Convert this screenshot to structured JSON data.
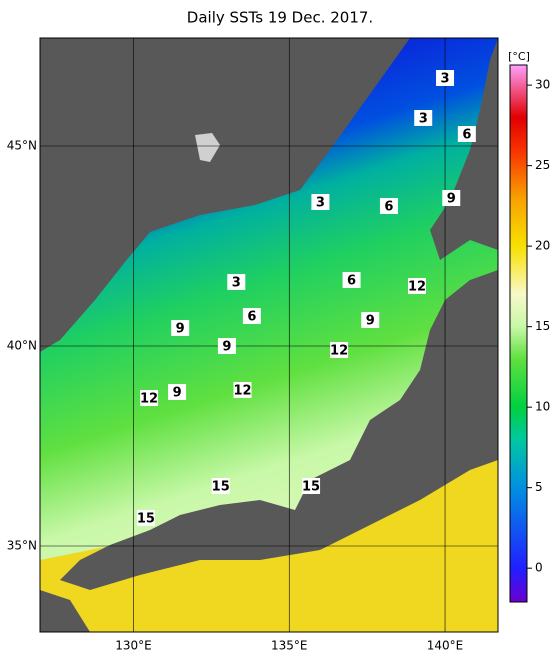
{
  "chart_data": {
    "type": "map",
    "title": "Daily SSTs 19 Dec. 2017.",
    "xlim": [
      127,
      141.7
    ],
    "ylim": [
      32.85,
      47.7
    ],
    "xticks": [
      {
        "value": 130,
        "label": "130°E"
      },
      {
        "value": 135,
        "label": "135°E"
      },
      {
        "value": 140,
        "label": "140°E"
      }
    ],
    "yticks": [
      {
        "value": 35,
        "label": "35°N"
      },
      {
        "value": 40,
        "label": "40°N"
      },
      {
        "value": 45,
        "label": "45°N"
      }
    ],
    "grid": true,
    "colorbar": {
      "label": "[°C]",
      "clim": [
        -2.1,
        31.25
      ],
      "ticks": [
        0,
        5,
        10,
        15,
        20,
        25,
        30
      ],
      "colormap": [
        {
          "value": -2.1,
          "color": "#6a00d0"
        },
        {
          "value": 0,
          "color": "#2020ff"
        },
        {
          "value": 5,
          "color": "#0090e0"
        },
        {
          "value": 8,
          "color": "#00c8a0"
        },
        {
          "value": 10,
          "color": "#00d040"
        },
        {
          "value": 13,
          "color": "#60e040"
        },
        {
          "value": 15,
          "color": "#c8f8a8"
        },
        {
          "value": 17,
          "color": "#f8f8c8"
        },
        {
          "value": 20,
          "color": "#f8e000"
        },
        {
          "value": 23,
          "color": "#f8a000"
        },
        {
          "value": 26,
          "color": "#f83000"
        },
        {
          "value": 28,
          "color": "#e00000"
        },
        {
          "value": 31.25,
          "color": "#ffa0ff"
        }
      ]
    },
    "contour_labels": [
      {
        "lon": 140.0,
        "lat": 46.7,
        "value": 3
      },
      {
        "lon": 139.3,
        "lat": 45.7,
        "value": 3
      },
      {
        "lon": 140.7,
        "lat": 45.3,
        "value": 6
      },
      {
        "lon": 136.0,
        "lat": 43.6,
        "value": 3
      },
      {
        "lon": 138.2,
        "lat": 43.5,
        "value": 6
      },
      {
        "lon": 140.2,
        "lat": 43.7,
        "value": 9
      },
      {
        "lon": 133.3,
        "lat": 41.6,
        "value": 3
      },
      {
        "lon": 137.0,
        "lat": 41.65,
        "value": 6
      },
      {
        "lon": 139.1,
        "lat": 41.5,
        "value": 12
      },
      {
        "lon": 133.8,
        "lat": 40.75,
        "value": 6
      },
      {
        "lon": 131.5,
        "lat": 40.45,
        "value": 9
      },
      {
        "lon": 137.6,
        "lat": 40.65,
        "value": 9
      },
      {
        "lon": 133.0,
        "lat": 40.0,
        "value": 9
      },
      {
        "lon": 136.6,
        "lat": 39.9,
        "value": 12
      },
      {
        "lon": 131.4,
        "lat": 38.85,
        "value": 9
      },
      {
        "lon": 133.5,
        "lat": 38.9,
        "value": 12
      },
      {
        "lon": 130.5,
        "lat": 38.7,
        "value": 12
      },
      {
        "lon": 132.8,
        "lat": 36.5,
        "value": 15
      },
      {
        "lon": 135.7,
        "lat": 36.5,
        "value": 15
      },
      {
        "lon": 130.4,
        "lat": 35.7,
        "value": 15
      }
    ]
  }
}
